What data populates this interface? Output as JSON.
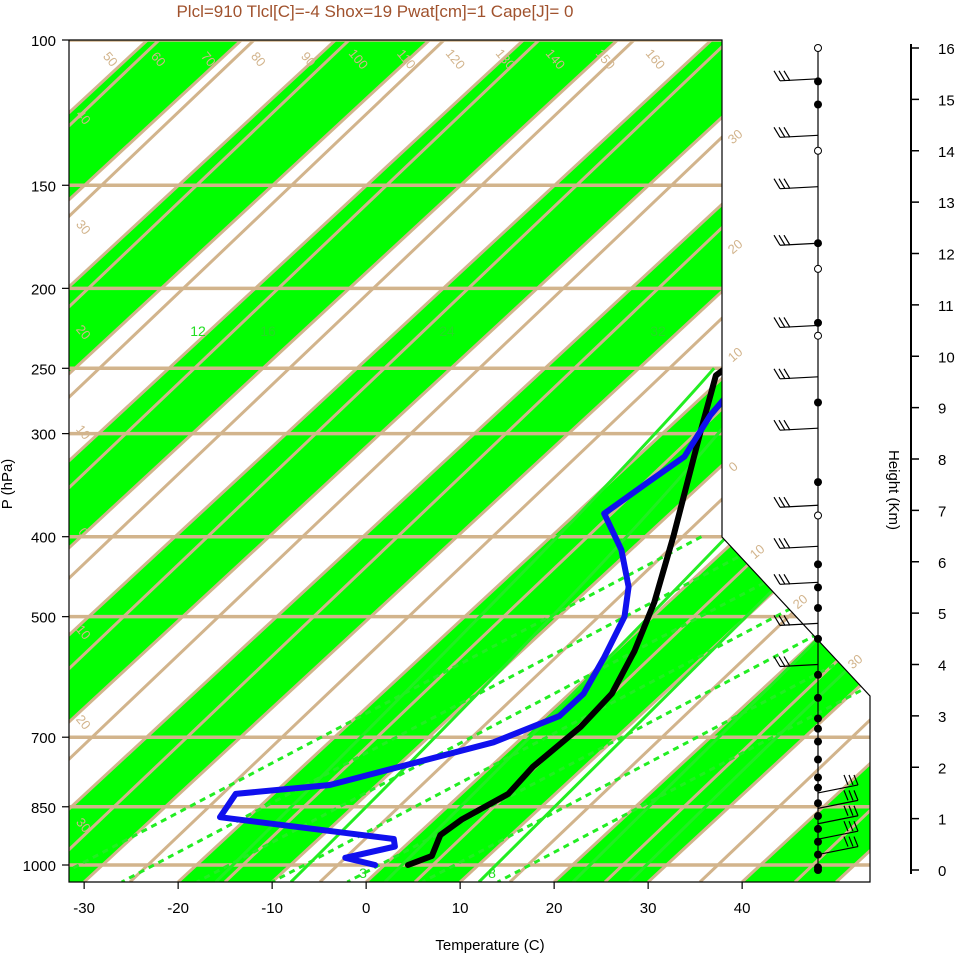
{
  "title": "Plcl=910 Tlcl[C]=-4 Shox=19 Pwat[cm]=1 Cape[J]= 0",
  "colors": {
    "title": "#a0522d",
    "band": "#00ff00",
    "isoline": "#d2b48c",
    "mixing_ratio": "#22ee22",
    "temperature": "#000000",
    "dewpoint": "#1010ee",
    "wind": "#000000"
  },
  "chart_data": {
    "type": "line",
    "subtype": "skew-T log-P sounding",
    "xlabel": "Temperature (C)",
    "ylabel": "P (hPa)",
    "y2label": "Height (Km)",
    "x_ticks": [
      "-30",
      "-20",
      "-10",
      "0",
      "10",
      "20",
      "30",
      "40"
    ],
    "pressure_ticks": [
      "100",
      "150",
      "200",
      "250",
      "300",
      "400",
      "500",
      "700",
      "850",
      "1000"
    ],
    "height_ticks": [
      "0",
      "1",
      "2",
      "3",
      "4",
      "5",
      "6",
      "7",
      "8",
      "9",
      "10",
      "11",
      "12",
      "13",
      "14",
      "15",
      "16"
    ],
    "isotherm_labels": [
      "50",
      "60",
      "70",
      "80",
      "90",
      "100",
      "110",
      "120",
      "130",
      "140",
      "150",
      "160"
    ],
    "skewed_labels_right": [
      "30",
      "20",
      "10",
      "0",
      "10",
      "20",
      "30"
    ],
    "skewed_labels_left": [
      "40",
      "30",
      "20",
      "10",
      "0",
      "10",
      "20",
      "30"
    ],
    "mixing_ratio_labels": [
      "12",
      "16",
      "24",
      "32"
    ],
    "mixing_ratio_bottom_labels": [
      "3",
      "8"
    ],
    "series": [
      {
        "kind": "temperature",
        "points": [
          [
            2.5,
            1000
          ],
          [
            4,
            975
          ],
          [
            2.5,
            920
          ],
          [
            3,
            880
          ],
          [
            5,
            820
          ],
          [
            4.5,
            760
          ],
          [
            5,
            680
          ],
          [
            4.5,
            620
          ],
          [
            2,
            550
          ],
          [
            -1.5,
            480
          ],
          [
            -7,
            400
          ],
          [
            -16,
            300
          ],
          [
            -21,
            255
          ],
          [
            -20,
            232
          ],
          [
            -17,
            220
          ],
          [
            -11,
            195
          ],
          [
            -5,
            175
          ],
          [
            -2,
            160
          ],
          [
            2,
            145
          ],
          [
            6,
            130
          ],
          [
            12,
            116
          ],
          [
            19.5,
            108
          ]
        ]
      },
      {
        "kind": "dewpoint",
        "points": [
          [
            -1,
            1000
          ],
          [
            -5,
            980
          ],
          [
            -1,
            950
          ],
          [
            -2,
            930
          ],
          [
            -23,
            875
          ],
          [
            -24,
            820
          ],
          [
            -15,
            800
          ],
          [
            -2.5,
            710
          ],
          [
            1.5,
            660
          ],
          [
            1.5,
            620
          ],
          [
            -0.5,
            560
          ],
          [
            -3,
            500
          ],
          [
            -6,
            460
          ],
          [
            -11,
            415
          ],
          [
            -17,
            375
          ],
          [
            -16,
            345
          ],
          [
            -15,
            320
          ],
          [
            -17,
            285
          ],
          [
            -18,
            255
          ],
          [
            -17,
            233
          ],
          [
            -16,
            210
          ],
          [
            -17.5,
            192
          ],
          [
            -19,
            176
          ],
          [
            -19,
            172
          ],
          [
            -8,
            150
          ],
          [
            -5,
            130
          ],
          [
            -8,
            112
          ]
        ]
      }
    ],
    "wind_barbs_km": [
      0.3,
      0.6,
      0.9,
      1.2,
      1.5,
      4.0,
      4.8,
      5.6,
      6.3,
      7.1,
      8.6,
      9.6,
      10.6,
      12.2,
      13.3,
      14.3,
      15.4
    ],
    "sounding_marker_heights_km": [
      0.0,
      0.05,
      0.3,
      0.55,
      0.8,
      1.05,
      1.3,
      1.6,
      1.8,
      2.15,
      2.5,
      2.75,
      2.95,
      3.35,
      3.8,
      4.5,
      5.1,
      5.5,
      5.95,
      7.55,
      9.1,
      10.65,
      12.2,
      14.9,
      15.35
    ],
    "sounding_open_markers_km": [
      6.9,
      10.4,
      11.7,
      14.0,
      16.0
    ]
  }
}
